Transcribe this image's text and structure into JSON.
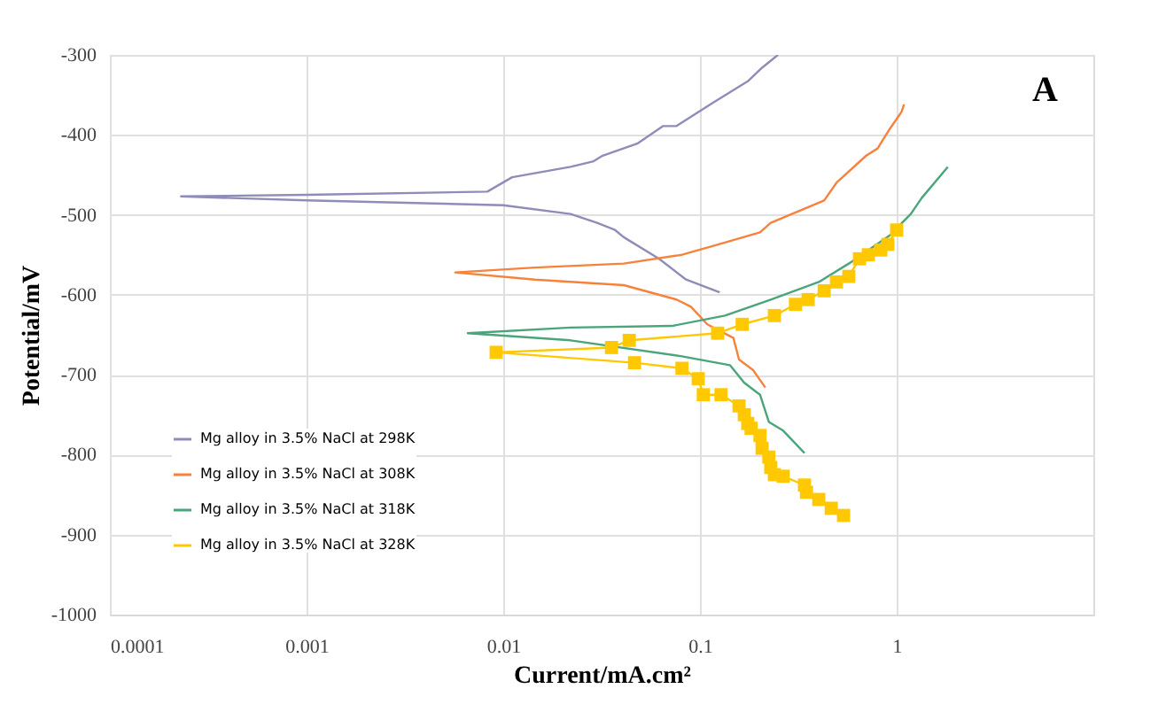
{
  "chart_data": {
    "type": "line",
    "xlabel": "Current/mA.cm²",
    "ylabel": "Potential/mV",
    "annotations": [
      "A"
    ],
    "log": "x",
    "xlim": [
      0.0001,
      10
    ],
    "xticks": [
      0.0001,
      0.001,
      0.01,
      0.1,
      1
    ],
    "ylim": [
      -1000,
      -300
    ],
    "yticks": [
      -1000,
      -900,
      -800,
      -700,
      -600,
      -500,
      -400,
      -300
    ],
    "grid": true,
    "legend": "bottom left",
    "line_style": "solid",
    "series": [
      {
        "name": "Mg alloy in 3.5% NaCl at 298K",
        "color": "#8e8cb8",
        "marker": "none",
        "x": [
          0.126,
          0.085,
          0.062,
          0.041,
          0.037,
          0.03,
          0.022,
          0.01,
          0.001,
          0.00023,
          0.001,
          0.0083,
          0.0111,
          0.022,
          0.0288,
          0.032,
          0.048,
          0.065,
          0.076,
          0.116,
          0.175,
          0.207,
          0.249
        ],
        "values": [
          -597,
          -581,
          -555,
          -528,
          -519,
          -510,
          -499,
          -488,
          -482,
          -477,
          -475,
          -471,
          -453,
          -440,
          -433,
          -426,
          -411,
          -389,
          -389,
          -360,
          -333,
          -316,
          -300
        ]
      },
      {
        "name": "Mg alloy in 3.5% NaCl at 308K",
        "color": "#f6823c",
        "marker": "none",
        "x": [
          0.215,
          0.186,
          0.158,
          0.148,
          0.109,
          0.09,
          0.076,
          0.041,
          0.0145,
          0.0057,
          0.0145,
          0.041,
          0.081,
          0.116,
          0.202,
          0.229,
          0.428,
          0.494,
          0.7,
          0.8,
          0.92,
          1.06,
          1.09
        ],
        "values": [
          -716,
          -694,
          -681,
          -654,
          -637,
          -615,
          -606,
          -588,
          -581,
          -572,
          -566,
          -561,
          -550,
          -539,
          -522,
          -510,
          -482,
          -460,
          -426,
          -417,
          -393,
          -371,
          -362
        ]
      },
      {
        "name": "Mg alloy in 3.5% NaCl at 318K",
        "color": "#4aa57a",
        "marker": "none",
        "x": [
          0.34,
          0.265,
          0.224,
          0.202,
          0.168,
          0.142,
          0.081,
          0.022,
          0.0066,
          0.022,
          0.072,
          0.134,
          0.229,
          0.402,
          0.571,
          0.92,
          1.18,
          1.34,
          1.82
        ],
        "values": [
          -798,
          -770,
          -759,
          -725,
          -710,
          -688,
          -677,
          -657,
          -648,
          -641,
          -639,
          -626,
          -606,
          -584,
          -561,
          -526,
          -499,
          -479,
          -440
        ]
      },
      {
        "name": "Mg alloy in 3.5% NaCl at 328K",
        "color": "#ffc800",
        "marker": "square",
        "x": [
          0.537,
          0.465,
          0.402,
          0.348,
          0.34,
          0.265,
          0.239,
          0.229,
          0.224,
          0.207,
          0.202,
          0.182,
          0.175,
          0.168,
          0.158,
          0.128,
          0.104,
          0.098,
          0.081,
          0.0465,
          0.0092,
          0.0355,
          0.0437,
          0.123,
          0.164,
          0.239,
          0.306,
          0.355,
          0.428,
          0.494,
          0.571,
          0.647,
          0.718,
          0.83,
          0.902,
          1.0
        ],
        "values": [
          -876,
          -867,
          -856,
          -847,
          -838,
          -827,
          -825,
          -816,
          -803,
          -792,
          -776,
          -767,
          -761,
          -750,
          -739,
          -725,
          -725,
          -705,
          -692,
          -685,
          -672,
          -666,
          -657,
          -648,
          -637,
          -626,
          -612,
          -606,
          -595,
          -584,
          -577,
          -555,
          -550,
          -544,
          -537,
          -519
        ]
      }
    ]
  }
}
